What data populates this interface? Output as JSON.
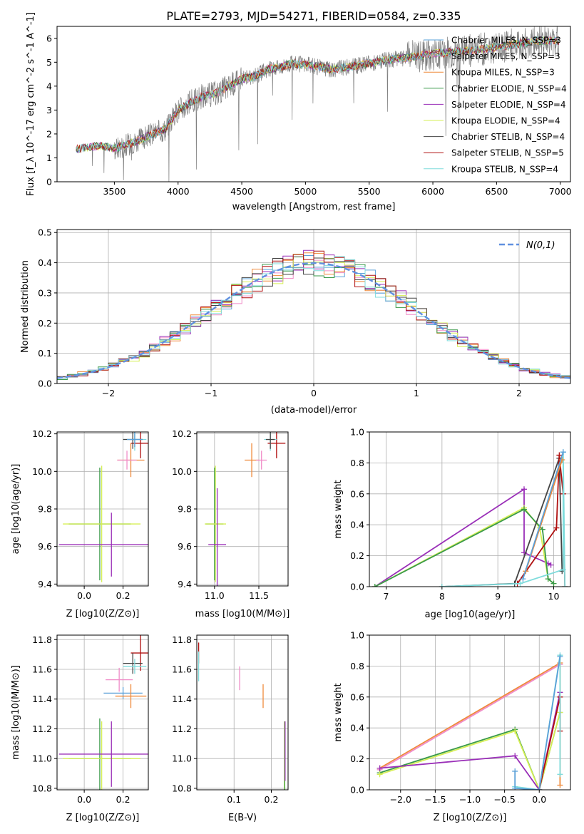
{
  "figure": {
    "title": "PLATE=2793, MJD=54271, FIBERID=0584, z=0.335"
  },
  "colors": {
    "chabrier_miles": "#5aa0d8",
    "salpeter_miles": "#f08cc8",
    "kroupa_miles": "#ef8a3a",
    "chabrier_elodie": "#3a9a4a",
    "salpeter_elodie": "#9a2fb8",
    "kroupa_elodie": "#d6ef55",
    "chabrier_stelib": "#444444",
    "salpeter_stelib": "#b01010",
    "kroupa_stelib": "#7fdcdc",
    "data": "#808080",
    "gauss": "#6090e0"
  },
  "chart_data": [
    {
      "type": "line",
      "id": "spectrum",
      "xlabel": "wavelength [Angstrom, rest frame]",
      "ylabel": "Flux [f_λ 10^-17 erg cm^-2 s^-1 A^-1]",
      "xlim": [
        3050,
        7080
      ],
      "ylim": [
        0,
        6.5
      ],
      "xticks": [
        3500,
        4000,
        4500,
        5000,
        5500,
        6000,
        6500,
        7000
      ],
      "yticks": [
        0,
        1,
        2,
        3,
        4,
        5,
        6
      ],
      "legend_position": "upper-right",
      "series": [
        {
          "name": "Chabrier MILES, N_SSP=3",
          "color": "#5aa0d8"
        },
        {
          "name": "Salpeter MILES, N_SSP=3",
          "color": "#f08cc8"
        },
        {
          "name": "Kroupa MILES, N_SSP=3",
          "color": "#ef8a3a"
        },
        {
          "name": "Chabrier ELODIE, N_SSP=4",
          "color": "#3a9a4a"
        },
        {
          "name": "Salpeter ELODIE, N_SSP=4",
          "color": "#9a2fb8"
        },
        {
          "name": "Kroupa ELODIE, N_SSP=4",
          "color": "#d6ef55"
        },
        {
          "name": "Chabrier STELIB, N_SSP=4",
          "color": "#444444"
        },
        {
          "name": "Salpeter STELIB, N_SSP=5",
          "color": "#b01010"
        },
        {
          "name": "Kroupa STELIB, N_SSP=4",
          "color": "#7fdcdc"
        }
      ],
      "continuum": {
        "x": [
          3200,
          3300,
          3400,
          3500,
          3600,
          3700,
          3800,
          3900,
          4000,
          4100,
          4200,
          4300,
          4400,
          4500,
          4600,
          4700,
          4800,
          4900,
          5000,
          5200,
          5400,
          5600,
          5800,
          6000,
          6200,
          6400,
          6600,
          6800
        ],
        "y": [
          1.35,
          1.45,
          1.5,
          1.4,
          1.55,
          1.75,
          2.0,
          2.2,
          3.0,
          3.3,
          3.6,
          3.7,
          4.0,
          4.3,
          4.4,
          4.7,
          4.8,
          4.95,
          4.9,
          4.7,
          4.85,
          5.05,
          5.2,
          5.35,
          5.45,
          5.55,
          5.7,
          5.9
        ]
      }
    },
    {
      "type": "line",
      "id": "residuals",
      "xlabel": "(data-model)/error",
      "ylabel": "Normed distribution",
      "xlim": [
        -2.5,
        2.5
      ],
      "ylim": [
        0,
        0.51
      ],
      "xticks": [
        -2,
        -1,
        0,
        1,
        2
      ],
      "yticks": [
        0.0,
        0.1,
        0.2,
        0.3,
        0.4,
        0.5
      ],
      "legend": "N(0,1)",
      "legend_position": "upper-right"
    },
    {
      "type": "scatter",
      "id": "age_vs_Z",
      "xlabel": "Z [log10(Z/Z⊙)]",
      "ylabel": "age [log10(age/yr)]",
      "xlim": [
        -0.14,
        0.33
      ],
      "ylim": [
        9.39,
        10.21
      ],
      "xticks": [
        0.0,
        0.2
      ],
      "yticks": [
        9.4,
        9.6,
        9.8,
        10.0,
        10.2
      ],
      "points": [
        {
          "color": "#b01010",
          "x": 0.29,
          "y": 10.15,
          "ex": 0.05,
          "ey": 0.08
        },
        {
          "color": "#7fdcdc",
          "x": 0.26,
          "y": 10.17,
          "ex": 0.06,
          "ey": 0.06
        },
        {
          "color": "#444444",
          "x": 0.25,
          "y": 10.17,
          "ex": 0.05,
          "ey": 0.05
        },
        {
          "color": "#5aa0d8",
          "x": 0.26,
          "y": 10.17,
          "ex": 0.04,
          "ey": 0.04
        },
        {
          "color": "#ef8a3a",
          "x": 0.24,
          "y": 10.06,
          "ex": 0.07,
          "ey": 0.09
        },
        {
          "color": "#f08cc8",
          "x": 0.22,
          "y": 10.06,
          "ex": 0.05,
          "ey": 0.05
        },
        {
          "color": "#3a9a4a",
          "x": 0.08,
          "y": 9.72,
          "ex": 0.16,
          "ey": 0.3
        },
        {
          "color": "#d6ef55",
          "x": 0.09,
          "y": 9.72,
          "ex": 0.2,
          "ey": 0.31
        },
        {
          "color": "#9a2fb8",
          "x": 0.14,
          "y": 9.61,
          "ex": 0.27,
          "ey": 0.17
        }
      ]
    },
    {
      "type": "scatter",
      "id": "age_vs_mass",
      "xlabel": "mass [log10(M/M⊙)]",
      "ylabel": "",
      "xlim": [
        10.8,
        11.83
      ],
      "ylim": [
        9.39,
        10.21
      ],
      "xticks": [
        11.0,
        11.5
      ],
      "yticks": [
        9.4,
        9.6,
        9.8,
        10.0,
        10.2
      ],
      "points": [
        {
          "color": "#b01010",
          "x": 11.7,
          "y": 10.15,
          "ex": 0.1,
          "ey": 0.08
        },
        {
          "color": "#7fdcdc",
          "x": 11.63,
          "y": 10.17,
          "ex": 0.07,
          "ey": 0.06
        },
        {
          "color": "#444444",
          "x": 11.63,
          "y": 10.17,
          "ex": 0.05,
          "ey": 0.05
        },
        {
          "color": "#ef8a3a",
          "x": 11.42,
          "y": 10.06,
          "ex": 0.08,
          "ey": 0.09
        },
        {
          "color": "#f08cc8",
          "x": 11.53,
          "y": 10.06,
          "ex": 0.06,
          "ey": 0.05
        },
        {
          "color": "#3a9a4a",
          "x": 11.0,
          "y": 9.72,
          "ex": 0.1,
          "ey": 0.3
        },
        {
          "color": "#d6ef55",
          "x": 11.01,
          "y": 9.72,
          "ex": 0.12,
          "ey": 0.31
        },
        {
          "color": "#9a2fb8",
          "x": 11.03,
          "y": 9.61,
          "ex": 0.1,
          "ey": 0.3
        }
      ]
    },
    {
      "type": "line",
      "id": "weight_vs_age",
      "xlabel": "age [log10(age/yr)]",
      "ylabel": "mass weight",
      "xlim": [
        6.7,
        10.3
      ],
      "ylim": [
        0,
        1.0
      ],
      "xticks": [
        7,
        8,
        9,
        10
      ],
      "yticks": [
        0.0,
        0.2,
        0.4,
        0.6,
        0.8,
        1.0
      ],
      "series": [
        {
          "color": "#9a2fb8",
          "x": [
            6.8,
            9.47,
            9.47,
            9.9,
            9.95
          ],
          "y": [
            0.0,
            0.63,
            0.22,
            0.15,
            0.14
          ]
        },
        {
          "color": "#d6ef55",
          "x": [
            6.8,
            9.47,
            9.75,
            9.9,
            10.0
          ],
          "y": [
            0.0,
            0.51,
            0.38,
            0.05,
            0.02
          ]
        },
        {
          "color": "#3a9a4a",
          "x": [
            6.8,
            9.47,
            9.8,
            9.9,
            10.0
          ],
          "y": [
            0.0,
            0.5,
            0.37,
            0.05,
            0.02
          ]
        },
        {
          "color": "#444444",
          "x": [
            8.0,
            9.3,
            10.1,
            10.15
          ],
          "y": [
            0.0,
            0.02,
            0.83,
            0.1
          ]
        },
        {
          "color": "#b01010",
          "x": [
            9.35,
            10.05,
            10.1,
            10.17,
            10.2
          ],
          "y": [
            0.02,
            0.38,
            0.85,
            0.6,
            0.0
          ]
        },
        {
          "color": "#7fdcdc",
          "x": [
            8.0,
            9.4,
            10.17,
            10.17,
            10.2
          ],
          "y": [
            0.0,
            0.02,
            0.11,
            0.87,
            0.0
          ]
        },
        {
          "color": "#ef8a3a",
          "x": [
            9.5,
            10.15
          ],
          "y": [
            0.1,
            0.82
          ]
        },
        {
          "color": "#5aa0d8",
          "x": [
            9.45,
            10.17
          ],
          "y": [
            0.05,
            0.87
          ]
        }
      ]
    },
    {
      "type": "scatter",
      "id": "mass_vs_Z",
      "xlabel": "Z [log10(Z/Z⊙)]",
      "ylabel": "mass [log10(M/M⊙)]",
      "xlim": [
        -0.14,
        0.33
      ],
      "ylim": [
        10.79,
        11.83
      ],
      "xticks": [
        0.0,
        0.2
      ],
      "yticks": [
        10.8,
        11.0,
        11.2,
        11.4,
        11.6,
        11.8
      ],
      "points": [
        {
          "color": "#b01010",
          "x": 0.29,
          "y": 11.71,
          "ex": 0.05,
          "ey": 0.12
        },
        {
          "color": "#444444",
          "x": 0.25,
          "y": 11.64,
          "ex": 0.05,
          "ey": 0.07
        },
        {
          "color": "#7fdcdc",
          "x": 0.26,
          "y": 11.62,
          "ex": 0.06,
          "ey": 0.05
        },
        {
          "color": "#f08cc8",
          "x": 0.18,
          "y": 11.53,
          "ex": 0.07,
          "ey": 0.08
        },
        {
          "color": "#5aa0d8",
          "x": 0.2,
          "y": 11.44,
          "ex": 0.1,
          "ey": 0.04
        },
        {
          "color": "#ef8a3a",
          "x": 0.24,
          "y": 11.42,
          "ex": 0.08,
          "ey": 0.08
        },
        {
          "color": "#3a9a4a",
          "x": 0.08,
          "y": 11.0,
          "ex": 0.16,
          "ey": 0.27
        },
        {
          "color": "#d6ef55",
          "x": 0.09,
          "y": 11.0,
          "ex": 0.2,
          "ey": 0.25
        },
        {
          "color": "#9a2fb8",
          "x": 0.14,
          "y": 11.03,
          "ex": 0.27,
          "ey": 0.22
        }
      ]
    },
    {
      "type": "scatter",
      "id": "mass_vs_ebv",
      "xlabel": "E(B-V)",
      "ylabel": "",
      "xlim": [
        0.0,
        0.245
      ],
      "ylim": [
        10.79,
        11.83
      ],
      "xticks": [
        0.1,
        0.2
      ],
      "yticks": [
        10.8,
        11.0,
        11.2,
        11.4,
        11.6,
        11.8
      ],
      "points": [
        {
          "color": "#b01010",
          "x": 0.005,
          "y": 11.71,
          "ex": 0,
          "ey": 0.07
        },
        {
          "color": "#7fdcdc",
          "x": 0.005,
          "y": 11.62,
          "ex": 0,
          "ey": 0.1
        },
        {
          "color": "#f08cc8",
          "x": 0.115,
          "y": 11.54,
          "ex": 0,
          "ey": 0.08
        },
        {
          "color": "#ef8a3a",
          "x": 0.178,
          "y": 11.42,
          "ex": 0,
          "ey": 0.08
        },
        {
          "color": "#d6ef55",
          "x": 0.235,
          "y": 11.0,
          "ex": 0,
          "ey": 0.25
        },
        {
          "color": "#3a9a4a",
          "x": 0.236,
          "y": 11.0,
          "ex": 0,
          "ey": 0.25
        },
        {
          "color": "#9a2fb8",
          "x": 0.237,
          "y": 11.05,
          "ex": 0,
          "ey": 0.2
        }
      ]
    },
    {
      "type": "line",
      "id": "weight_vs_Z",
      "xlabel": "Z [log10(Z/Z⊙)]",
      "ylabel": "mass weight",
      "xlim": [
        -2.45,
        0.45
      ],
      "ylim": [
        0,
        1.0
      ],
      "xticks": [
        -2.0,
        -1.5,
        -1.0,
        -0.5,
        0.0
      ],
      "yticks": [
        0.0,
        0.2,
        0.4,
        0.6,
        0.8,
        1.0
      ],
      "series": [
        {
          "color": "#ef8a3a",
          "x": [
            -2.3,
            0.3,
            0.3
          ],
          "y": [
            0.14,
            0.82,
            0.03
          ]
        },
        {
          "color": "#f08cc8",
          "x": [
            -2.3,
            0.3
          ],
          "y": [
            0.13,
            0.81
          ]
        },
        {
          "color": "#3a9a4a",
          "x": [
            -2.3,
            -0.35,
            0.0,
            0.3
          ],
          "y": [
            0.11,
            0.39,
            0.0,
            0.5
          ]
        },
        {
          "color": "#d6ef55",
          "x": [
            -2.3,
            -0.35,
            0.0,
            0.3
          ],
          "y": [
            0.1,
            0.38,
            0.0,
            0.5
          ]
        },
        {
          "color": "#9a2fb8",
          "x": [
            -2.3,
            -0.35,
            0.0,
            0.3
          ],
          "y": [
            0.14,
            0.22,
            0.0,
            0.63
          ]
        },
        {
          "color": "#b01010",
          "x": [
            0.0,
            0.3,
            0.3
          ],
          "y": [
            0.0,
            0.6,
            0.38
          ]
        },
        {
          "color": "#7fdcdc",
          "x": [
            -0.35,
            0.0,
            0.3,
            0.3
          ],
          "y": [
            0.02,
            0.0,
            0.87,
            0.1
          ]
        },
        {
          "color": "#5aa0d8",
          "x": [
            -0.35,
            -0.35,
            0.0,
            0.3
          ],
          "y": [
            0.12,
            0.01,
            0.0,
            0.86
          ]
        }
      ]
    }
  ]
}
